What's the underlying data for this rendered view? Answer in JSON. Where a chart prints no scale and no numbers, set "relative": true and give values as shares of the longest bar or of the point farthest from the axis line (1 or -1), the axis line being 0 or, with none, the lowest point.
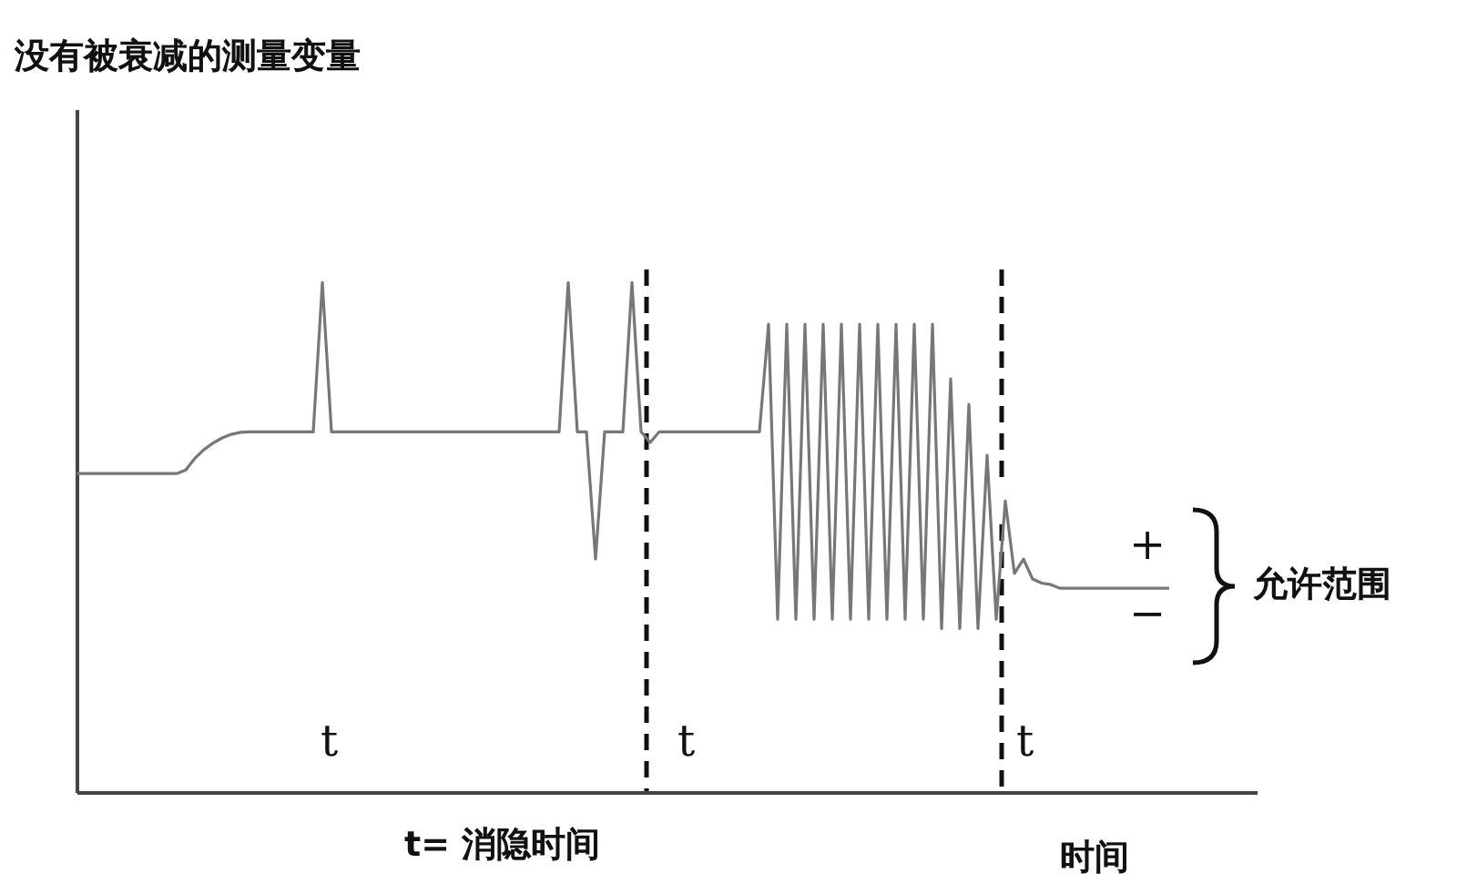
{
  "chart_data": {
    "type": "line",
    "relative": true,
    "xlabel": "时间",
    "marker": "none",
    "line_style": "solid",
    "categories": [
      null,
      null,
      null,
      null,
      null,
      null,
      null,
      null,
      null,
      null,
      null,
      null,
      null,
      null,
      null,
      null,
      null,
      null,
      null,
      null,
      null,
      null,
      null,
      null,
      null,
      null,
      null,
      null,
      null,
      null,
      null,
      null,
      null,
      null,
      null,
      null,
      null,
      null,
      null,
      null,
      null,
      null,
      null,
      null,
      null,
      null,
      null,
      null,
      null,
      null,
      null,
      null,
      null,
      null,
      null,
      null,
      null,
      null,
      null,
      null,
      null,
      null,
      null,
      null,
      null,
      null,
      null,
      null,
      null,
      null,
      null,
      null,
      null,
      null,
      null,
      null,
      null,
      null,
      null,
      null,
      null,
      null,
      null,
      null,
      null,
      null,
      null,
      null,
      null,
      null,
      null,
      null,
      null,
      null,
      null,
      null,
      null,
      null,
      null,
      null,
      null,
      null,
      null,
      null,
      null,
      null,
      null,
      null,
      null,
      null,
      null,
      null,
      null,
      null,
      null,
      null,
      null,
      null,
      null,
      null,
      null
    ],
    "series": [
      {
        "color": "#777777",
        "values": [
          0.625,
          0.625,
          0.625,
          0.625,
          0.625,
          0.625,
          0.625,
          0.625,
          0.625,
          0.625,
          0.625,
          0.625,
          0.632,
          0.655,
          0.672,
          0.685,
          0.695,
          0.702,
          0.706,
          0.707,
          0.707,
          0.707,
          0.707,
          0.707,
          0.707,
          0.707,
          0.707,
          1,
          0.707,
          0.707,
          0.707,
          0.707,
          0.707,
          0.707,
          0.707,
          0.707,
          0.707,
          0.707,
          0.707,
          0.707,
          0.707,
          0.707,
          0.707,
          0.707,
          0.707,
          0.707,
          0.707,
          0.707,
          0.707,
          0.707,
          0.707,
          0.707,
          0.707,
          0.707,
          1,
          0.707,
          0.707,
          0.457,
          0.707,
          0.707,
          0.707,
          1,
          0.707,
          0.686,
          0.707,
          0.707,
          0.707,
          0.707,
          0.707,
          0.707,
          0.707,
          0.707,
          0.707,
          0.707,
          0.707,
          0.707,
          0.918,
          0.339,
          0.918,
          0.339,
          0.918,
          0.339,
          0.918,
          0.339,
          0.918,
          0.339,
          0.918,
          0.339,
          0.918,
          0.339,
          0.918,
          0.339,
          0.918,
          0.339,
          0.918,
          0.321,
          0.811,
          0.321,
          0.761,
          0.321,
          0.661,
          0.339,
          0.571,
          0.429,
          0.457,
          0.418,
          0.41,
          0.407,
          0.4,
          0.4,
          0.4,
          0.4,
          0.4,
          0.4,
          0.4,
          0.4,
          0.4,
          0.4,
          0.4,
          0.4,
          0.4
        ]
      }
    ],
    "annotations": [
      "没有被衰减的测量变量",
      "t",
      "t",
      "t",
      "t= 消隐时间",
      "+",
      "−",
      "允许范围"
    ]
  }
}
